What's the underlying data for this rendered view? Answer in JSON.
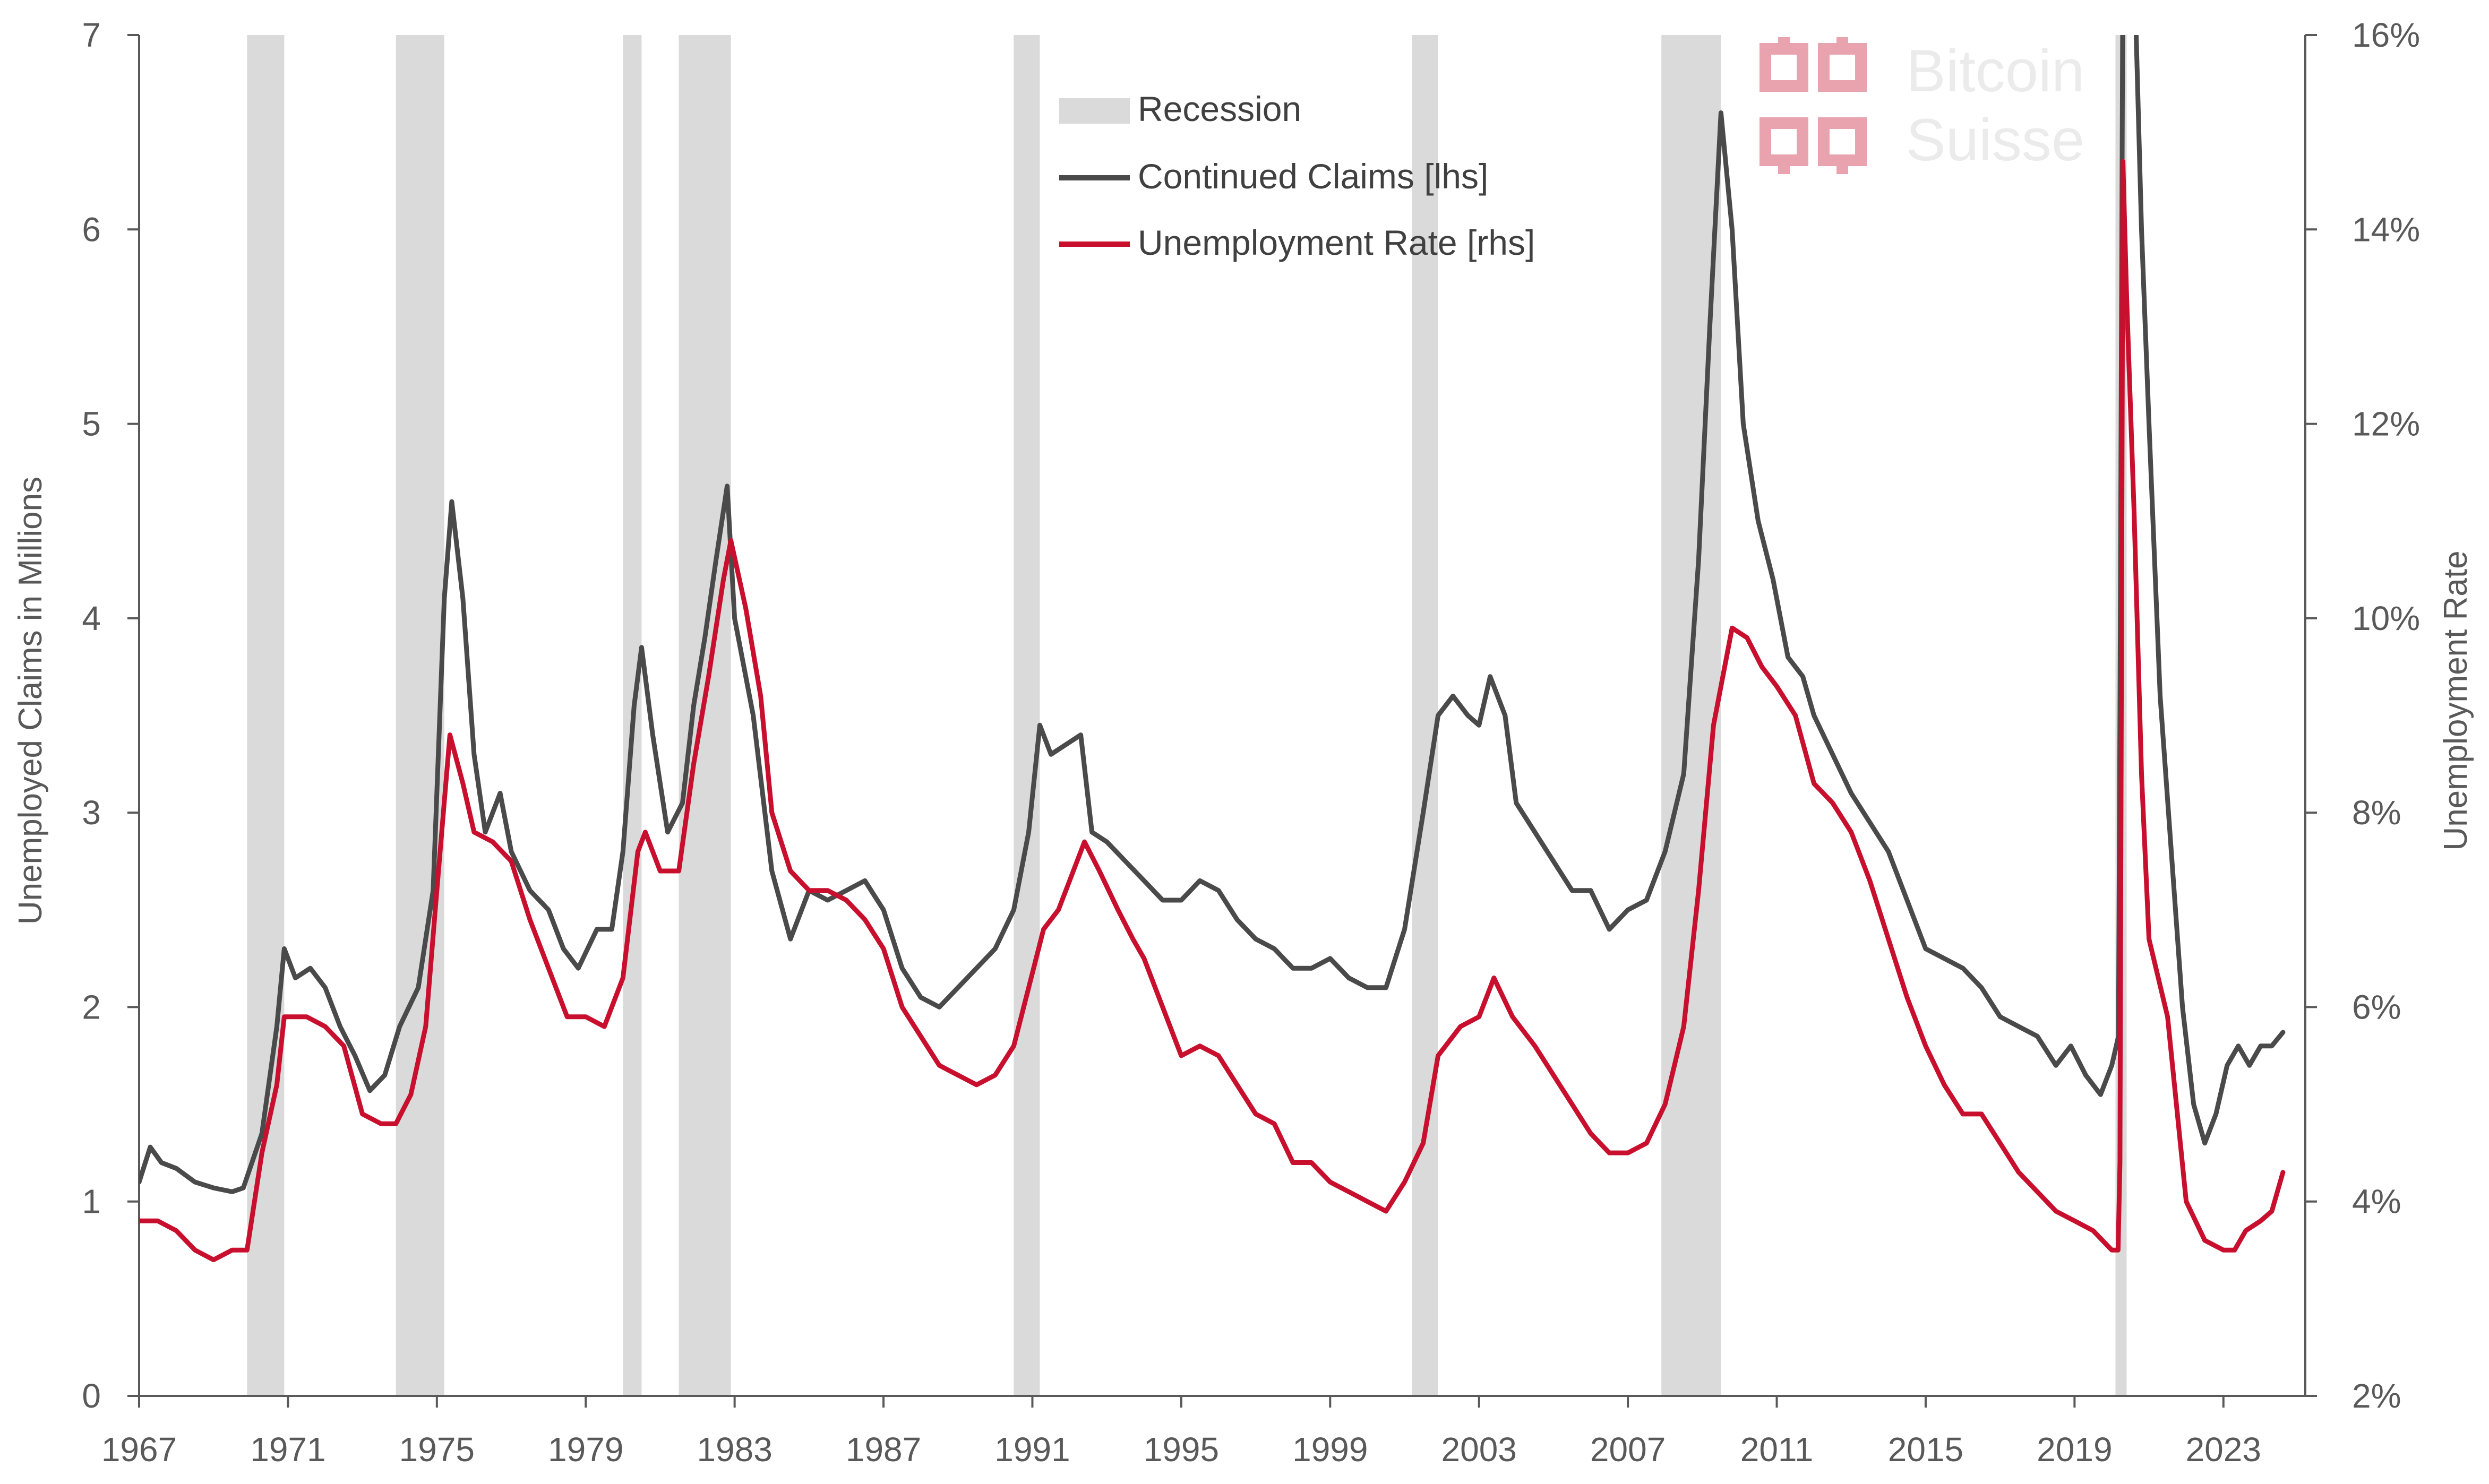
{
  "colors": {
    "recession": "#dadada",
    "claims": "#4a4a4a",
    "unemployment": "#c8102e",
    "axis": "#595959"
  },
  "logo": {
    "line1": "Bitcoin",
    "line2": "Suisse",
    "icon": "bitcoin-suisse-logo-icon"
  },
  "chart_data": {
    "type": "line",
    "title": "",
    "xlabel": "",
    "ylabel_left": "Unemployed Claims in Millions",
    "ylabel_right": "Unemployment Rate",
    "xlim": [
      1967,
      2025.2
    ],
    "ylim_left": [
      0,
      7
    ],
    "ylim_right": [
      2,
      16
    ],
    "x_ticks": [
      "1967",
      "1971",
      "1975",
      "1979",
      "1983",
      "1987",
      "1991",
      "1995",
      "1999",
      "2003",
      "2007",
      "2011",
      "2015",
      "2019",
      "2023"
    ],
    "y_ticks_left": [
      "0",
      "1",
      "2",
      "3",
      "4",
      "5",
      "6",
      "7"
    ],
    "y_ticks_right": [
      "2%",
      "4%",
      "6%",
      "8%",
      "10%",
      "12%",
      "14%",
      "16%"
    ],
    "grid": false,
    "legend_position": "top-center",
    "legend": {
      "recession": "Recession",
      "claims": "Continued Claims [lhs]",
      "unemployment": "Unemployment Rate [rhs]"
    },
    "recessions": [
      [
        1969.9,
        1970.9
      ],
      [
        1973.9,
        1975.2
      ],
      [
        1980.0,
        1980.5
      ],
      [
        1981.5,
        1982.9
      ],
      [
        1990.5,
        1991.2
      ],
      [
        2001.2,
        2001.9
      ],
      [
        2007.9,
        2009.5
      ],
      [
        2020.1,
        2020.4
      ]
    ],
    "series": [
      {
        "name": "Continued Claims [lhs]",
        "axis": "left",
        "points": [
          [
            1967.0,
            1.1
          ],
          [
            1967.3,
            1.28
          ],
          [
            1967.6,
            1.2
          ],
          [
            1968.0,
            1.17
          ],
          [
            1968.5,
            1.1
          ],
          [
            1969.0,
            1.07
          ],
          [
            1969.5,
            1.05
          ],
          [
            1969.8,
            1.07
          ],
          [
            1970.3,
            1.35
          ],
          [
            1970.7,
            1.9
          ],
          [
            1970.9,
            2.3
          ],
          [
            1971.2,
            2.15
          ],
          [
            1971.6,
            2.2
          ],
          [
            1972.0,
            2.1
          ],
          [
            1972.4,
            1.9
          ],
          [
            1972.8,
            1.75
          ],
          [
            1973.2,
            1.57
          ],
          [
            1973.6,
            1.65
          ],
          [
            1974.0,
            1.9
          ],
          [
            1974.5,
            2.1
          ],
          [
            1974.9,
            2.6
          ],
          [
            1975.2,
            4.1
          ],
          [
            1975.4,
            4.6
          ],
          [
            1975.7,
            4.1
          ],
          [
            1976.0,
            3.3
          ],
          [
            1976.3,
            2.9
          ],
          [
            1976.7,
            3.1
          ],
          [
            1977.0,
            2.8
          ],
          [
            1977.5,
            2.6
          ],
          [
            1978.0,
            2.5
          ],
          [
            1978.4,
            2.3
          ],
          [
            1978.8,
            2.2
          ],
          [
            1979.3,
            2.4
          ],
          [
            1979.7,
            2.4
          ],
          [
            1980.0,
            2.8
          ],
          [
            1980.3,
            3.55
          ],
          [
            1980.5,
            3.85
          ],
          [
            1980.8,
            3.4
          ],
          [
            1981.2,
            2.9
          ],
          [
            1981.6,
            3.05
          ],
          [
            1981.9,
            3.55
          ],
          [
            1982.2,
            3.9
          ],
          [
            1982.5,
            4.3
          ],
          [
            1982.8,
            4.68
          ],
          [
            1983.0,
            4.0
          ],
          [
            1983.5,
            3.5
          ],
          [
            1984.0,
            2.7
          ],
          [
            1984.5,
            2.35
          ],
          [
            1985.0,
            2.6
          ],
          [
            1985.5,
            2.55
          ],
          [
            1986.0,
            2.6
          ],
          [
            1986.5,
            2.65
          ],
          [
            1987.0,
            2.5
          ],
          [
            1987.5,
            2.2
          ],
          [
            1988.0,
            2.05
          ],
          [
            1988.5,
            2.0
          ],
          [
            1989.0,
            2.1
          ],
          [
            1989.5,
            2.2
          ],
          [
            1990.0,
            2.3
          ],
          [
            1990.5,
            2.5
          ],
          [
            1990.9,
            2.9
          ],
          [
            1991.2,
            3.45
          ],
          [
            1991.5,
            3.3
          ],
          [
            1991.9,
            3.35
          ],
          [
            1992.3,
            3.4
          ],
          [
            1992.6,
            2.9
          ],
          [
            1993.0,
            2.85
          ],
          [
            1993.5,
            2.75
          ],
          [
            1994.0,
            2.65
          ],
          [
            1994.5,
            2.55
          ],
          [
            1995.0,
            2.55
          ],
          [
            1995.5,
            2.65
          ],
          [
            1996.0,
            2.6
          ],
          [
            1996.5,
            2.45
          ],
          [
            1997.0,
            2.35
          ],
          [
            1997.5,
            2.3
          ],
          [
            1998.0,
            2.2
          ],
          [
            1998.5,
            2.2
          ],
          [
            1999.0,
            2.25
          ],
          [
            1999.5,
            2.15
          ],
          [
            2000.0,
            2.1
          ],
          [
            2000.5,
            2.1
          ],
          [
            2001.0,
            2.4
          ],
          [
            2001.5,
            3.0
          ],
          [
            2001.9,
            3.5
          ],
          [
            2002.3,
            3.6
          ],
          [
            2002.7,
            3.5
          ],
          [
            2003.0,
            3.45
          ],
          [
            2003.3,
            3.7
          ],
          [
            2003.7,
            3.5
          ],
          [
            2004.0,
            3.05
          ],
          [
            2004.5,
            2.9
          ],
          [
            2005.0,
            2.75
          ],
          [
            2005.5,
            2.6
          ],
          [
            2006.0,
            2.6
          ],
          [
            2006.5,
            2.4
          ],
          [
            2007.0,
            2.5
          ],
          [
            2007.5,
            2.55
          ],
          [
            2008.0,
            2.8
          ],
          [
            2008.5,
            3.2
          ],
          [
            2008.9,
            4.3
          ],
          [
            2009.2,
            5.5
          ],
          [
            2009.5,
            6.6
          ],
          [
            2009.8,
            6.0
          ],
          [
            2010.1,
            5.0
          ],
          [
            2010.5,
            4.5
          ],
          [
            2010.9,
            4.2
          ],
          [
            2011.3,
            3.8
          ],
          [
            2011.7,
            3.7
          ],
          [
            2012.0,
            3.5
          ],
          [
            2012.5,
            3.3
          ],
          [
            2013.0,
            3.1
          ],
          [
            2013.5,
            2.95
          ],
          [
            2014.0,
            2.8
          ],
          [
            2014.5,
            2.55
          ],
          [
            2015.0,
            2.3
          ],
          [
            2015.5,
            2.25
          ],
          [
            2016.0,
            2.2
          ],
          [
            2016.5,
            2.1
          ],
          [
            2017.0,
            1.95
          ],
          [
            2017.5,
            1.9
          ],
          [
            2018.0,
            1.85
          ],
          [
            2018.5,
            1.7
          ],
          [
            2018.9,
            1.8
          ],
          [
            2019.3,
            1.65
          ],
          [
            2019.7,
            1.55
          ],
          [
            2020.0,
            1.7
          ],
          [
            2020.18,
            1.85
          ],
          [
            2020.22,
            3.5
          ],
          [
            2020.3,
            7.4
          ],
          [
            2020.6,
            7.4
          ],
          [
            2020.8,
            6.0
          ],
          [
            2021.0,
            5.0
          ],
          [
            2021.3,
            3.6
          ],
          [
            2021.6,
            2.8
          ],
          [
            2021.9,
            2.0
          ],
          [
            2022.2,
            1.5
          ],
          [
            2022.5,
            1.3
          ],
          [
            2022.8,
            1.45
          ],
          [
            2023.1,
            1.7
          ],
          [
            2023.4,
            1.8
          ],
          [
            2023.7,
            1.7
          ],
          [
            2024.0,
            1.8
          ],
          [
            2024.3,
            1.8
          ],
          [
            2024.6,
            1.87
          ]
        ]
      },
      {
        "name": "Unemployment Rate [rhs]",
        "axis": "right",
        "points": [
          [
            1967.0,
            3.8
          ],
          [
            1967.5,
            3.8
          ],
          [
            1968.0,
            3.7
          ],
          [
            1968.5,
            3.5
          ],
          [
            1969.0,
            3.4
          ],
          [
            1969.5,
            3.5
          ],
          [
            1969.9,
            3.5
          ],
          [
            1970.3,
            4.5
          ],
          [
            1970.7,
            5.2
          ],
          [
            1970.9,
            5.9
          ],
          [
            1971.5,
            5.9
          ],
          [
            1972.0,
            5.8
          ],
          [
            1972.5,
            5.6
          ],
          [
            1973.0,
            4.9
          ],
          [
            1973.5,
            4.8
          ],
          [
            1973.9,
            4.8
          ],
          [
            1974.3,
            5.1
          ],
          [
            1974.7,
            5.8
          ],
          [
            1975.0,
            7.2
          ],
          [
            1975.35,
            8.8
          ],
          [
            1975.7,
            8.3
          ],
          [
            1976.0,
            7.8
          ],
          [
            1976.5,
            7.7
          ],
          [
            1977.0,
            7.5
          ],
          [
            1977.5,
            6.9
          ],
          [
            1978.0,
            6.4
          ],
          [
            1978.5,
            5.9
          ],
          [
            1979.0,
            5.9
          ],
          [
            1979.5,
            5.8
          ],
          [
            1980.0,
            6.3
          ],
          [
            1980.4,
            7.6
          ],
          [
            1980.6,
            7.8
          ],
          [
            1981.0,
            7.4
          ],
          [
            1981.5,
            7.4
          ],
          [
            1981.9,
            8.5
          ],
          [
            1982.3,
            9.4
          ],
          [
            1982.7,
            10.4
          ],
          [
            1982.9,
            10.8
          ],
          [
            1983.3,
            10.1
          ],
          [
            1983.7,
            9.2
          ],
          [
            1984.0,
            8.0
          ],
          [
            1984.5,
            7.4
          ],
          [
            1985.0,
            7.2
          ],
          [
            1985.5,
            7.2
          ],
          [
            1986.0,
            7.1
          ],
          [
            1986.5,
            6.9
          ],
          [
            1987.0,
            6.6
          ],
          [
            1987.5,
            6.0
          ],
          [
            1988.0,
            5.7
          ],
          [
            1988.5,
            5.4
          ],
          [
            1989.0,
            5.3
          ],
          [
            1989.5,
            5.2
          ],
          [
            1990.0,
            5.3
          ],
          [
            1990.5,
            5.6
          ],
          [
            1990.9,
            6.2
          ],
          [
            1991.3,
            6.8
          ],
          [
            1991.7,
            7.0
          ],
          [
            1992.0,
            7.3
          ],
          [
            1992.4,
            7.7
          ],
          [
            1992.8,
            7.4
          ],
          [
            1993.3,
            7.0
          ],
          [
            1993.7,
            6.7
          ],
          [
            1994.0,
            6.5
          ],
          [
            1994.5,
            6.0
          ],
          [
            1995.0,
            5.5
          ],
          [
            1995.5,
            5.6
          ],
          [
            1996.0,
            5.5
          ],
          [
            1996.5,
            5.2
          ],
          [
            1997.0,
            4.9
          ],
          [
            1997.5,
            4.8
          ],
          [
            1998.0,
            4.4
          ],
          [
            1998.5,
            4.4
          ],
          [
            1999.0,
            4.2
          ],
          [
            1999.5,
            4.1
          ],
          [
            2000.0,
            4.0
          ],
          [
            2000.5,
            3.9
          ],
          [
            2001.0,
            4.2
          ],
          [
            2001.5,
            4.6
          ],
          [
            2001.9,
            5.5
          ],
          [
            2002.5,
            5.8
          ],
          [
            2003.0,
            5.9
          ],
          [
            2003.4,
            6.3
          ],
          [
            2003.9,
            5.9
          ],
          [
            2004.5,
            5.6
          ],
          [
            2005.0,
            5.3
          ],
          [
            2005.5,
            5.0
          ],
          [
            2006.0,
            4.7
          ],
          [
            2006.5,
            4.5
          ],
          [
            2007.0,
            4.5
          ],
          [
            2007.5,
            4.6
          ],
          [
            2008.0,
            5.0
          ],
          [
            2008.5,
            5.8
          ],
          [
            2008.9,
            7.2
          ],
          [
            2009.3,
            8.9
          ],
          [
            2009.8,
            9.9
          ],
          [
            2010.2,
            9.8
          ],
          [
            2010.6,
            9.5
          ],
          [
            2011.0,
            9.3
          ],
          [
            2011.5,
            9.0
          ],
          [
            2012.0,
            8.3
          ],
          [
            2012.5,
            8.1
          ],
          [
            2013.0,
            7.8
          ],
          [
            2013.5,
            7.3
          ],
          [
            2014.0,
            6.7
          ],
          [
            2014.5,
            6.1
          ],
          [
            2015.0,
            5.6
          ],
          [
            2015.5,
            5.2
          ],
          [
            2016.0,
            4.9
          ],
          [
            2016.5,
            4.9
          ],
          [
            2017.0,
            4.6
          ],
          [
            2017.5,
            4.3
          ],
          [
            2018.0,
            4.1
          ],
          [
            2018.5,
            3.9
          ],
          [
            2019.0,
            3.8
          ],
          [
            2019.5,
            3.7
          ],
          [
            2020.0,
            3.5
          ],
          [
            2020.17,
            3.5
          ],
          [
            2020.22,
            4.4
          ],
          [
            2020.3,
            14.7
          ],
          [
            2020.4,
            13.3
          ],
          [
            2020.6,
            11.1
          ],
          [
            2020.8,
            8.4
          ],
          [
            2021.0,
            6.7
          ],
          [
            2021.5,
            5.9
          ],
          [
            2022.0,
            4.0
          ],
          [
            2022.5,
            3.6
          ],
          [
            2023.0,
            3.5
          ],
          [
            2023.3,
            3.5
          ],
          [
            2023.6,
            3.7
          ],
          [
            2024.0,
            3.8
          ],
          [
            2024.3,
            3.9
          ],
          [
            2024.6,
            4.3
          ]
        ]
      }
    ]
  }
}
